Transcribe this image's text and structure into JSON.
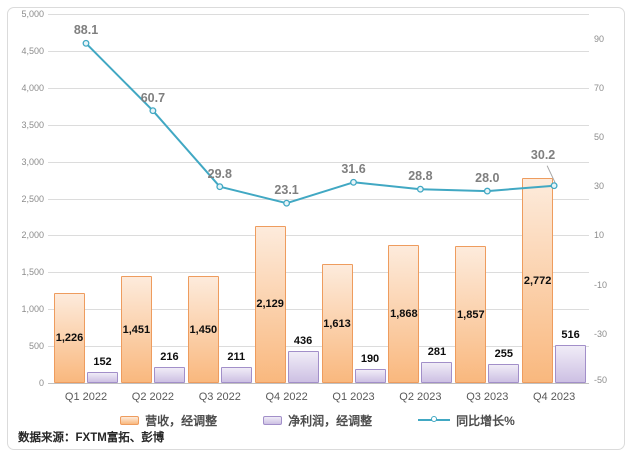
{
  "chart_data": {
    "type": "combo-bar-line",
    "categories": [
      "Q1 2022",
      "Q2 2022",
      "Q3 2022",
      "Q4 2022",
      "Q1 2023",
      "Q2 2023",
      "Q3 2023",
      "Q4 2023"
    ],
    "series": [
      {
        "name": "营收，经调整",
        "type": "bar",
        "axis": "left",
        "values": [
          1226,
          1451,
          1450,
          2129,
          1613,
          1868,
          1857,
          2772
        ],
        "labels": [
          "1,226",
          "1,451",
          "1,450",
          "2,129",
          "1,613",
          "1,868",
          "1,857",
          "2,772"
        ],
        "label_position": "center"
      },
      {
        "name": "净利润，经调整",
        "type": "bar",
        "axis": "left",
        "values": [
          152,
          216,
          211,
          436,
          190,
          281,
          255,
          516
        ],
        "labels": [
          "152",
          "216",
          "211",
          "436",
          "190",
          "281",
          "255",
          "516"
        ],
        "label_position": "above"
      },
      {
        "name": "同比增长%",
        "type": "line",
        "axis": "right",
        "values": [
          88.1,
          60.7,
          29.8,
          23.1,
          31.6,
          28.8,
          28.0,
          30.2
        ],
        "labels": [
          "88.1",
          "60.7",
          "29.8",
          "23.1",
          "31.6",
          "28.8",
          "28.0",
          "30.2"
        ],
        "last_label_offset": {
          "dx": -11,
          "dy": -31,
          "leader": true
        }
      }
    ],
    "left_axis": {
      "min": 0,
      "max": 5000,
      "step": 500,
      "tick_values": [
        5000,
        4500,
        4000,
        3500,
        3000,
        2500,
        2000,
        1500,
        1000,
        500,
        0
      ],
      "tick_labels": [
        "5,000",
        "4,500",
        "4,000",
        "3,500",
        "3,000",
        "2,500",
        "2,000",
        "1,500",
        "1,000",
        "500",
        "0"
      ]
    },
    "right_axis": {
      "min": -50,
      "max": 100,
      "tick_values": [
        90,
        70,
        50,
        30,
        10,
        -10,
        -30,
        -50
      ],
      "tick_labels": [
        "90",
        "70",
        "50",
        "30",
        "10",
        "-10",
        "-30",
        "-50"
      ]
    },
    "grid": true,
    "legend_position": "bottom",
    "colors": {
      "revenue_border": "#EE9C5E",
      "revenue_fill_top": "#FDEBDC",
      "revenue_fill_bottom": "#F9B87E",
      "profit_border": "#A28FC9",
      "profit_fill_top": "#F0ECF7",
      "profit_fill_bottom": "#CDC0E3",
      "line": "#41A8C3",
      "marker_fill": "#E8F4F8",
      "grid": "#DCDCDC",
      "grid_bottom": "#C0C0C0",
      "axis_text": "#8C8C8C",
      "xaxis_text": "#595959",
      "bar_label": "#0D0D0D",
      "line_label": "#7F7F7F",
      "leader": "#A6A6A6",
      "legend_text": "#4D4D4D",
      "frame_border": "#DBDBDB",
      "source_text": "#262626"
    }
  },
  "source_note": "数据来源：FXTM富拓、彭博"
}
